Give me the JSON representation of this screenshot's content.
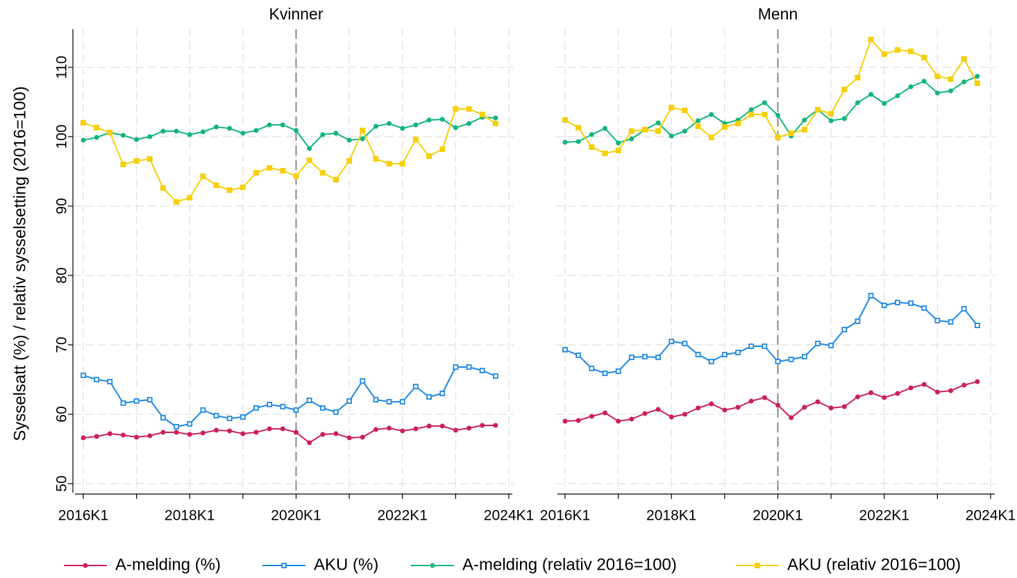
{
  "chart_data": [
    {
      "type": "line",
      "title": "Kvinner",
      "ylabel": "Sysselsatt (%) / relativ sysselsetting (2016=100)",
      "xticks": [
        "2016K1",
        null,
        "2018K1",
        null,
        "2020K1",
        null,
        "2022K1",
        null,
        "2024K1"
      ],
      "vline": "2020K1",
      "ylim": [
        48.5,
        115.5
      ],
      "yticks": [
        50,
        60,
        70,
        80,
        90,
        100,
        110
      ],
      "grid": true,
      "series": [
        {
          "name": "A-melding (%)",
          "color": "#cc1f5f",
          "marker": "circle",
          "values": [
            56.6,
            56.8,
            57.2,
            57.0,
            56.7,
            56.9,
            57.4,
            57.4,
            57.1,
            57.3,
            57.7,
            57.6,
            57.2,
            57.4,
            57.9,
            57.9,
            57.4,
            55.9,
            57.1,
            57.2,
            56.6,
            56.7,
            57.8,
            58.0,
            57.6,
            57.9,
            58.3,
            58.3,
            57.7,
            58.0,
            58.4,
            58.4
          ]
        },
        {
          "name": "AKU (%)",
          "color": "#1e88e5",
          "marker": "hollow-square",
          "values": [
            65.6,
            65.0,
            64.7,
            61.6,
            61.9,
            62.1,
            59.5,
            58.2,
            58.6,
            60.6,
            59.8,
            59.4,
            59.6,
            60.9,
            61.4,
            61.1,
            60.6,
            62.0,
            60.9,
            60.3,
            61.9,
            64.8,
            62.1,
            61.8,
            61.8,
            64.0,
            62.5,
            63.0,
            66.8,
            66.8,
            66.3,
            65.5
          ]
        },
        {
          "name": "A-melding (relativ 2016=100)",
          "color": "#13b579",
          "marker": "circle",
          "values": [
            99.5,
            99.9,
            100.6,
            100.2,
            99.6,
            100.0,
            100.8,
            100.8,
            100.3,
            100.7,
            101.4,
            101.2,
            100.5,
            100.9,
            101.7,
            101.7,
            100.9,
            98.3,
            100.3,
            100.5,
            99.5,
            99.7,
            101.5,
            101.9,
            101.2,
            101.7,
            102.4,
            102.5,
            101.3,
            101.9,
            102.8,
            102.7
          ]
        },
        {
          "name": "AKU (relativ 2016=100)",
          "color": "#f6d00c",
          "marker": "square",
          "values": [
            102.0,
            101.3,
            100.6,
            96.0,
            96.5,
            96.8,
            92.6,
            90.6,
            91.2,
            94.3,
            93.0,
            92.3,
            92.7,
            94.8,
            95.5,
            95.1,
            94.3,
            96.6,
            94.8,
            93.8,
            96.5,
            100.9,
            96.8,
            96.1,
            96.1,
            99.6,
            97.2,
            98.2,
            104.0,
            104.0,
            103.2,
            101.9
          ]
        }
      ]
    },
    {
      "type": "line",
      "title": "Menn",
      "xticks": [
        "2016K1",
        null,
        "2018K1",
        null,
        "2020K1",
        null,
        "2022K1",
        null,
        "2024K1"
      ],
      "vline": "2020K1",
      "ylim": [
        48.5,
        115.5
      ],
      "yticks": [
        50,
        60,
        70,
        80,
        90,
        100,
        110
      ],
      "grid": true,
      "series": [
        {
          "name": "A-melding (%)",
          "color": "#cc1f5f",
          "marker": "circle",
          "values": [
            59.0,
            59.1,
            59.7,
            60.2,
            59.0,
            59.3,
            60.1,
            60.7,
            59.6,
            60.0,
            60.9,
            61.5,
            60.6,
            61.0,
            61.9,
            62.4,
            61.3,
            59.5,
            61.0,
            61.8,
            60.9,
            61.1,
            62.5,
            63.1,
            62.4,
            63.0,
            63.8,
            64.3,
            63.2,
            63.4,
            64.2,
            64.7
          ]
        },
        {
          "name": "AKU (%)",
          "color": "#1e88e5",
          "marker": "hollow-square",
          "values": [
            69.3,
            68.5,
            66.6,
            65.9,
            66.2,
            68.2,
            68.3,
            68.2,
            70.5,
            70.2,
            68.6,
            67.6,
            68.6,
            68.9,
            69.8,
            69.8,
            67.6,
            67.9,
            68.3,
            70.2,
            69.9,
            72.2,
            73.4,
            77.1,
            75.7,
            76.1,
            76.0,
            75.3,
            73.5,
            73.3,
            75.2,
            72.8
          ]
        },
        {
          "name": "A-melding (relativ 2016=100)",
          "color": "#13b579",
          "marker": "circle",
          "values": [
            99.2,
            99.3,
            100.3,
            101.2,
            99.1,
            99.7,
            101.0,
            102.0,
            100.1,
            100.8,
            102.3,
            103.2,
            101.9,
            102.4,
            103.9,
            104.9,
            103.1,
            100.1,
            102.4,
            103.9,
            102.3,
            102.6,
            104.9,
            106.1,
            104.8,
            105.9,
            107.2,
            108.0,
            106.3,
            106.6,
            107.9,
            108.7
          ]
        },
        {
          "name": "AKU (relativ 2016=100)",
          "color": "#f6d00c",
          "marker": "square",
          "values": [
            102.4,
            101.3,
            98.5,
            97.6,
            98.0,
            100.8,
            101.0,
            100.8,
            104.2,
            103.8,
            101.5,
            99.9,
            101.4,
            101.9,
            103.2,
            103.2,
            99.9,
            100.5,
            101.0,
            103.9,
            103.3,
            106.8,
            108.5,
            114.0,
            111.9,
            112.5,
            112.3,
            111.4,
            108.7,
            108.3,
            111.2,
            107.7
          ]
        }
      ]
    }
  ]
}
